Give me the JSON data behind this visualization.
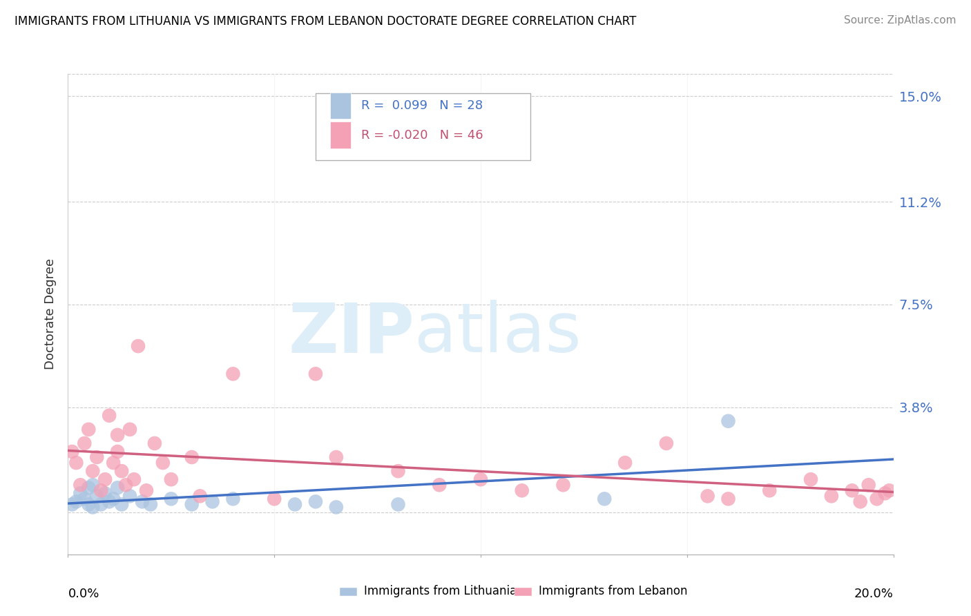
{
  "title": "IMMIGRANTS FROM LITHUANIA VS IMMIGRANTS FROM LEBANON DOCTORATE DEGREE CORRELATION CHART",
  "source": "Source: ZipAtlas.com",
  "ylabel": "Doctorate Degree",
  "yticks": [
    0.0,
    0.038,
    0.075,
    0.112,
    0.15
  ],
  "ytick_labels": [
    "",
    "3.8%",
    "7.5%",
    "11.2%",
    "15.0%"
  ],
  "xlim": [
    0.0,
    0.2
  ],
  "ylim": [
    -0.015,
    0.158
  ],
  "series1_color": "#aac4e0",
  "series2_color": "#f4a0b5",
  "trendline1_color": "#4472c4",
  "trendline2_color": "#d06080",
  "watermark_zip_color": "#ddeef8",
  "watermark_atlas_color": "#ddeef8",
  "legend_r1": "R =  0.099",
  "legend_n1": "N = 28",
  "legend_r2": "R = -0.020",
  "legend_n2": "N = 46",
  "legend_color1": "#4472c4",
  "legend_color2": "#c05070",
  "series1_x": [
    0.001,
    0.002,
    0.003,
    0.004,
    0.005,
    0.005,
    0.006,
    0.006,
    0.007,
    0.008,
    0.009,
    0.01,
    0.011,
    0.012,
    0.013,
    0.015,
    0.018,
    0.02,
    0.025,
    0.03,
    0.035,
    0.04,
    0.055,
    0.06,
    0.065,
    0.08,
    0.13,
    0.16
  ],
  "series1_y": [
    0.003,
    0.004,
    0.007,
    0.005,
    0.003,
    0.009,
    0.002,
    0.01,
    0.006,
    0.003,
    0.007,
    0.004,
    0.005,
    0.009,
    0.003,
    0.006,
    0.004,
    0.003,
    0.005,
    0.003,
    0.004,
    0.005,
    0.003,
    0.004,
    0.002,
    0.003,
    0.005,
    0.033
  ],
  "series2_x": [
    0.001,
    0.002,
    0.003,
    0.004,
    0.005,
    0.006,
    0.007,
    0.008,
    0.009,
    0.01,
    0.011,
    0.012,
    0.012,
    0.013,
    0.014,
    0.015,
    0.016,
    0.017,
    0.019,
    0.021,
    0.023,
    0.025,
    0.03,
    0.032,
    0.04,
    0.05,
    0.06,
    0.065,
    0.08,
    0.09,
    0.1,
    0.11,
    0.12,
    0.135,
    0.145,
    0.155,
    0.16,
    0.17,
    0.18,
    0.185,
    0.19,
    0.192,
    0.194,
    0.196,
    0.198,
    0.199
  ],
  "series2_y": [
    0.022,
    0.018,
    0.01,
    0.025,
    0.03,
    0.015,
    0.02,
    0.008,
    0.012,
    0.035,
    0.018,
    0.022,
    0.028,
    0.015,
    0.01,
    0.03,
    0.012,
    0.06,
    0.008,
    0.025,
    0.018,
    0.012,
    0.02,
    0.006,
    0.05,
    0.005,
    0.05,
    0.02,
    0.015,
    0.01,
    0.012,
    0.008,
    0.01,
    0.018,
    0.025,
    0.006,
    0.005,
    0.008,
    0.012,
    0.006,
    0.008,
    0.004,
    0.01,
    0.005,
    0.007,
    0.008
  ]
}
